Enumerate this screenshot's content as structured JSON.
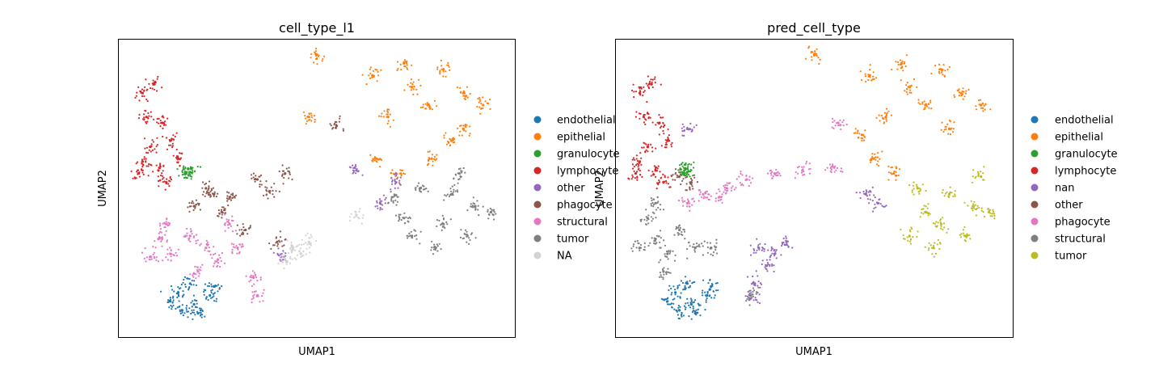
{
  "chart_data": [
    {
      "type": "scatter",
      "title": "cell_type_l1",
      "xlabel": "UMAP1",
      "ylabel": "UMAP2",
      "ticks": "none",
      "legend_position": "right-outside",
      "legend": [
        {
          "label": "endothelial",
          "color": "#1f77b4"
        },
        {
          "label": "epithelial",
          "color": "#ff7f0e"
        },
        {
          "label": "granulocyte",
          "color": "#2ca02c"
        },
        {
          "label": "lymphocyte",
          "color": "#d62728"
        },
        {
          "label": "other",
          "color": "#9467bd"
        },
        {
          "label": "phagocyte",
          "color": "#8c564b"
        },
        {
          "label": "structural",
          "color": "#e377c2"
        },
        {
          "label": "tumor",
          "color": "#7f7f7f"
        },
        {
          "label": "NA",
          "color": "#d3d3d3"
        }
      ],
      "series": [
        {
          "name": "endothelial",
          "points": [
            [
              0.16,
              0.09
            ],
            [
              0.13,
              0.12
            ],
            [
              0.19,
              0.11
            ],
            [
              0.23,
              0.14
            ],
            [
              0.2,
              0.08
            ],
            [
              0.24,
              0.17
            ],
            [
              0.15,
              0.15
            ],
            [
              0.18,
              0.18
            ]
          ]
        },
        {
          "name": "epithelial",
          "points": [
            [
              0.64,
              0.88
            ],
            [
              0.72,
              0.92
            ],
            [
              0.82,
              0.9
            ],
            [
              0.87,
              0.82
            ],
            [
              0.78,
              0.78
            ],
            [
              0.68,
              0.74
            ],
            [
              0.65,
              0.6
            ],
            [
              0.7,
              0.55
            ],
            [
              0.79,
              0.6
            ],
            [
              0.87,
              0.7
            ],
            [
              0.92,
              0.78
            ],
            [
              0.74,
              0.84
            ],
            [
              0.84,
              0.66
            ],
            [
              0.5,
              0.95
            ],
            [
              0.48,
              0.74
            ]
          ]
        },
        {
          "name": "granulocyte",
          "points": [
            [
              0.175,
              0.565
            ],
            [
              0.18,
              0.555
            ],
            [
              0.17,
              0.55
            ]
          ]
        },
        {
          "name": "lymphocyte",
          "points": [
            [
              0.06,
              0.82
            ],
            [
              0.09,
              0.85
            ],
            [
              0.07,
              0.74
            ],
            [
              0.11,
              0.72
            ],
            [
              0.08,
              0.64
            ],
            [
              0.13,
              0.66
            ],
            [
              0.05,
              0.55
            ],
            [
              0.1,
              0.56
            ],
            [
              0.15,
              0.6
            ],
            [
              0.12,
              0.52
            ],
            [
              0.06,
              0.59
            ]
          ]
        },
        {
          "name": "phagocyte",
          "points": [
            [
              0.24,
              0.48
            ],
            [
              0.22,
              0.5
            ],
            [
              0.28,
              0.47
            ],
            [
              0.35,
              0.53
            ],
            [
              0.42,
              0.55
            ],
            [
              0.38,
              0.49
            ],
            [
              0.19,
              0.44
            ],
            [
              0.55,
              0.71
            ],
            [
              0.4,
              0.32
            ],
            [
              0.32,
              0.36
            ],
            [
              0.26,
              0.42
            ]
          ]
        },
        {
          "name": "structural",
          "points": [
            [
              0.1,
              0.33
            ],
            [
              0.13,
              0.28
            ],
            [
              0.18,
              0.34
            ],
            [
              0.22,
              0.3
            ],
            [
              0.25,
              0.26
            ],
            [
              0.3,
              0.3
            ],
            [
              0.34,
              0.2
            ],
            [
              0.35,
              0.14
            ],
            [
              0.12,
              0.38
            ],
            [
              0.2,
              0.22
            ],
            [
              0.28,
              0.38
            ],
            [
              0.08,
              0.27
            ]
          ]
        },
        {
          "name": "tumor",
          "points": [
            [
              0.76,
              0.5
            ],
            [
              0.84,
              0.48
            ],
            [
              0.9,
              0.44
            ],
            [
              0.82,
              0.38
            ],
            [
              0.74,
              0.34
            ],
            [
              0.8,
              0.3
            ],
            [
              0.88,
              0.34
            ],
            [
              0.94,
              0.42
            ],
            [
              0.72,
              0.4
            ],
            [
              0.69,
              0.47
            ],
            [
              0.86,
              0.55
            ]
          ]
        },
        {
          "name": "other",
          "points": [
            [
              0.7,
              0.52
            ],
            [
              0.66,
              0.45
            ],
            [
              0.41,
              0.27
            ],
            [
              0.6,
              0.56
            ]
          ]
        },
        {
          "name": "NA",
          "points": [
            [
              0.44,
              0.3
            ],
            [
              0.46,
              0.28
            ],
            [
              0.6,
              0.41
            ],
            [
              0.42,
              0.26
            ],
            [
              0.48,
              0.32
            ]
          ]
        }
      ]
    },
    {
      "type": "scatter",
      "title": "pred_cell_type",
      "xlabel": "UMAP1",
      "ylabel": "UMAP2",
      "ticks": "none",
      "legend_position": "right-outside",
      "legend": [
        {
          "label": "endothelial",
          "color": "#1f77b4"
        },
        {
          "label": "epithelial",
          "color": "#ff7f0e"
        },
        {
          "label": "granulocyte",
          "color": "#2ca02c"
        },
        {
          "label": "lymphocyte",
          "color": "#d62728"
        },
        {
          "label": "nan",
          "color": "#9467bd"
        },
        {
          "label": "other",
          "color": "#8c564b"
        },
        {
          "label": "phagocyte",
          "color": "#e377c2"
        },
        {
          "label": "structural",
          "color": "#7f7f7f"
        },
        {
          "label": "tumor",
          "color": "#bcbd22"
        }
      ],
      "series": [
        {
          "name": "endothelial",
          "points": [
            [
              0.16,
              0.09
            ],
            [
              0.13,
              0.12
            ],
            [
              0.19,
              0.11
            ],
            [
              0.23,
              0.14
            ],
            [
              0.2,
              0.08
            ],
            [
              0.24,
              0.17
            ],
            [
              0.15,
              0.15
            ],
            [
              0.18,
              0.18
            ]
          ]
        },
        {
          "name": "epithelial",
          "points": [
            [
              0.64,
              0.88
            ],
            [
              0.72,
              0.92
            ],
            [
              0.82,
              0.9
            ],
            [
              0.87,
              0.82
            ],
            [
              0.78,
              0.78
            ],
            [
              0.68,
              0.74
            ],
            [
              0.65,
              0.6
            ],
            [
              0.7,
              0.55
            ],
            [
              0.74,
              0.84
            ],
            [
              0.84,
              0.7
            ],
            [
              0.92,
              0.78
            ],
            [
              0.5,
              0.95
            ],
            [
              0.62,
              0.68
            ]
          ]
        },
        {
          "name": "granulocyte",
          "points": [
            [
              0.175,
              0.565
            ],
            [
              0.18,
              0.555
            ],
            [
              0.17,
              0.55
            ]
          ]
        },
        {
          "name": "lymphocyte",
          "points": [
            [
              0.06,
              0.82
            ],
            [
              0.09,
              0.85
            ],
            [
              0.07,
              0.74
            ],
            [
              0.11,
              0.72
            ],
            [
              0.08,
              0.64
            ],
            [
              0.13,
              0.66
            ],
            [
              0.05,
              0.55
            ],
            [
              0.1,
              0.56
            ],
            [
              0.12,
              0.52
            ],
            [
              0.06,
              0.59
            ]
          ]
        },
        {
          "name": "nan",
          "points": [
            [
              0.36,
              0.3
            ],
            [
              0.4,
              0.28
            ],
            [
              0.43,
              0.32
            ],
            [
              0.38,
              0.24
            ],
            [
              0.35,
              0.18
            ],
            [
              0.34,
              0.13
            ],
            [
              0.63,
              0.48
            ],
            [
              0.66,
              0.45
            ],
            [
              0.18,
              0.7
            ]
          ]
        },
        {
          "name": "other",
          "points": [
            [
              0.16,
              0.54
            ],
            [
              0.19,
              0.52
            ]
          ]
        },
        {
          "name": "phagocyte",
          "points": [
            [
              0.22,
              0.48
            ],
            [
              0.26,
              0.47
            ],
            [
              0.33,
              0.53
            ],
            [
              0.4,
              0.55
            ],
            [
              0.47,
              0.56
            ],
            [
              0.55,
              0.57
            ],
            [
              0.28,
              0.5
            ],
            [
              0.56,
              0.72
            ],
            [
              0.18,
              0.45
            ]
          ]
        },
        {
          "name": "structural",
          "points": [
            [
              0.08,
              0.4
            ],
            [
              0.1,
              0.33
            ],
            [
              0.13,
              0.28
            ],
            [
              0.06,
              0.3
            ],
            [
              0.16,
              0.36
            ],
            [
              0.2,
              0.3
            ],
            [
              0.24,
              0.3
            ],
            [
              0.1,
              0.45
            ],
            [
              0.34,
              0.14
            ],
            [
              0.12,
              0.22
            ]
          ]
        },
        {
          "name": "tumor",
          "points": [
            [
              0.76,
              0.5
            ],
            [
              0.84,
              0.48
            ],
            [
              0.9,
              0.44
            ],
            [
              0.82,
              0.38
            ],
            [
              0.74,
              0.34
            ],
            [
              0.8,
              0.3
            ],
            [
              0.88,
              0.34
            ],
            [
              0.94,
              0.42
            ],
            [
              0.78,
              0.42
            ],
            [
              0.92,
              0.54
            ]
          ]
        }
      ]
    }
  ]
}
